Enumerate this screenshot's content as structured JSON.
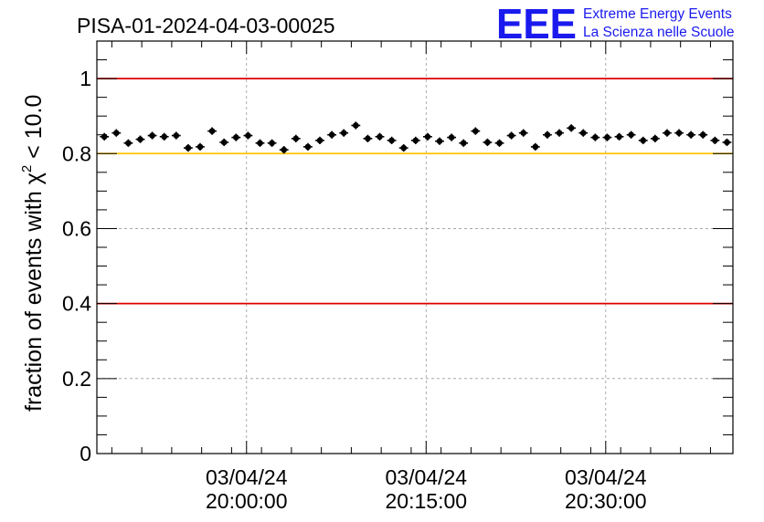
{
  "logo": {
    "letters": "EEE",
    "line1": "Extreme Energy Events",
    "line2": "La Scienza nelle Scuole"
  },
  "chart_data": {
    "type": "scatter",
    "title": "PISA-01-2024-04-03-00025",
    "ylabel_prefix": "fraction of events with χ",
    "ylabel_sup": "2",
    "ylabel_suffix": " < 10.0",
    "xlim": [
      0,
      42.5
    ],
    "ylim": [
      0,
      1.1
    ],
    "grid": true,
    "y_ticks": [
      {
        "value": 0,
        "label": "0"
      },
      {
        "value": 0.2,
        "label": "0.2"
      },
      {
        "value": 0.4,
        "label": "0.4"
      },
      {
        "value": 0.6,
        "label": "0.6"
      },
      {
        "value": 0.8,
        "label": "0.8"
      },
      {
        "value": 1.0,
        "label": "1"
      }
    ],
    "x_ticks": [
      {
        "value": 10,
        "date": "03/04/24",
        "time": "20:00:00"
      },
      {
        "value": 22,
        "date": "03/04/24",
        "time": "20:15:00"
      },
      {
        "value": 34,
        "date": "03/04/24",
        "time": "20:30:00"
      }
    ],
    "reference_lines": [
      {
        "value": 1.0,
        "color": "#dd0000"
      },
      {
        "value": 0.8,
        "color": "#ffc400"
      },
      {
        "value": 0.4,
        "color": "#dd0000"
      }
    ],
    "x_half_width": 0.3,
    "y_error": 0.01,
    "series": [
      {
        "color": "#000000",
        "x": [
          0.5,
          1.3,
          2.1,
          2.9,
          3.7,
          4.5,
          5.3,
          6.1,
          6.9,
          7.7,
          8.5,
          9.3,
          10.1,
          10.9,
          11.7,
          12.5,
          13.3,
          14.1,
          14.9,
          15.7,
          16.5,
          17.3,
          18.1,
          18.9,
          19.7,
          20.5,
          21.3,
          22.1,
          22.9,
          23.7,
          24.5,
          25.3,
          26.1,
          26.9,
          27.7,
          28.5,
          29.3,
          30.1,
          30.9,
          31.7,
          32.5,
          33.3,
          34.1,
          34.9,
          35.7,
          36.5,
          37.3,
          38.1,
          38.9,
          39.7,
          40.5,
          41.3,
          42.1
        ],
        "y": [
          0.845,
          0.855,
          0.828,
          0.838,
          0.848,
          0.845,
          0.848,
          0.815,
          0.818,
          0.86,
          0.83,
          0.843,
          0.848,
          0.828,
          0.828,
          0.81,
          0.84,
          0.818,
          0.835,
          0.85,
          0.855,
          0.875,
          0.84,
          0.845,
          0.835,
          0.815,
          0.835,
          0.845,
          0.833,
          0.843,
          0.828,
          0.86,
          0.83,
          0.828,
          0.848,
          0.855,
          0.818,
          0.85,
          0.855,
          0.868,
          0.855,
          0.843,
          0.843,
          0.845,
          0.85,
          0.835,
          0.84,
          0.855,
          0.855,
          0.85,
          0.85,
          0.835,
          0.83
        ]
      }
    ]
  }
}
